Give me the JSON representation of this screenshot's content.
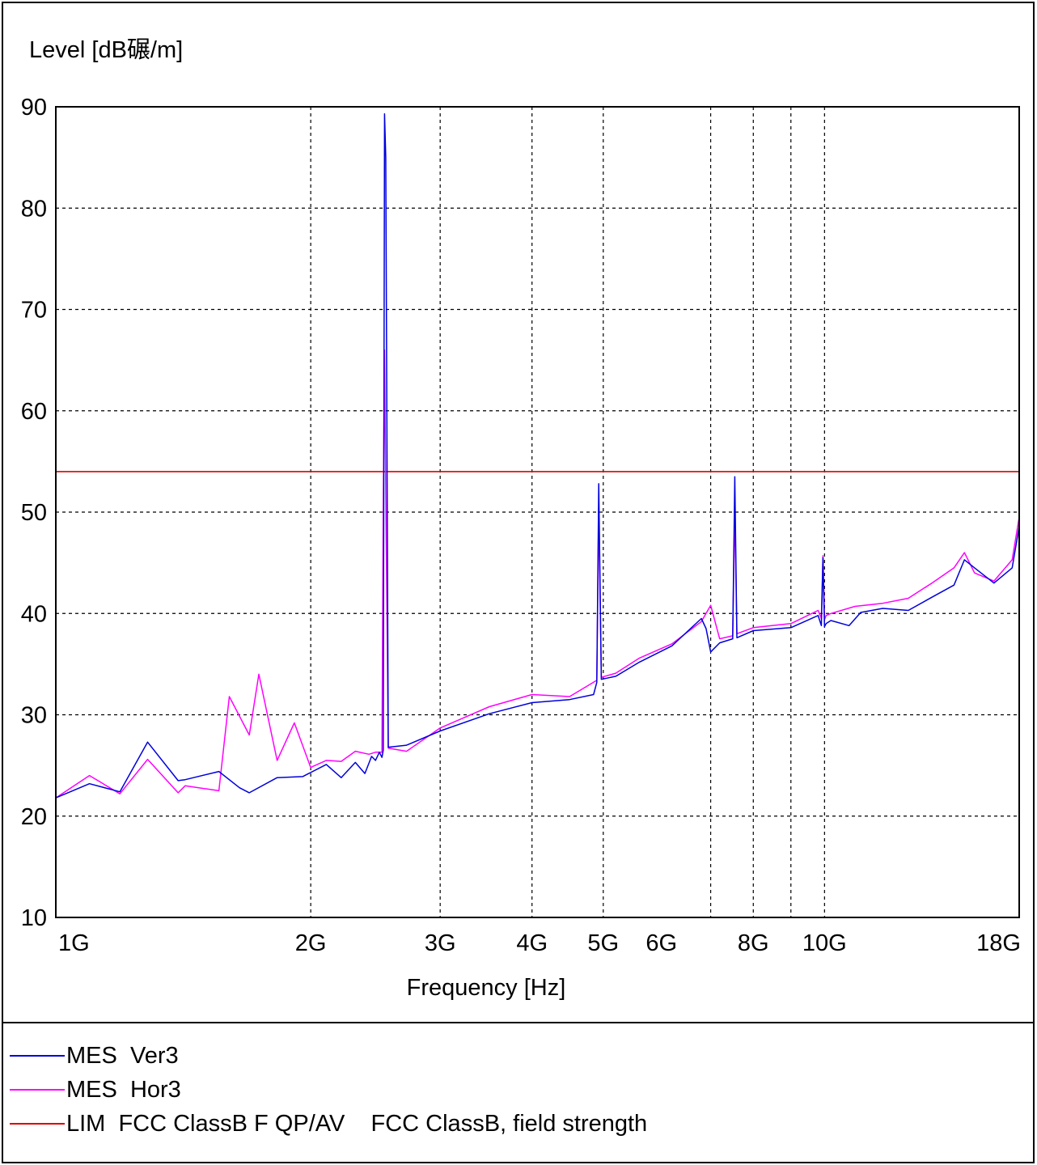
{
  "chart_data": {
    "type": "line",
    "ylabel": "Level [dB碾/m]",
    "xlabel": "Frequency [Hz]",
    "ylim": [
      10,
      90
    ],
    "xlim_hz": [
      900000000,
      18400000000
    ],
    "x_scale": "log",
    "grid": true,
    "y_ticks": [
      10,
      20,
      30,
      40,
      50,
      60,
      70,
      80,
      90
    ],
    "x_ticks": [
      {
        "label": "1G",
        "value": 1000000000
      },
      {
        "label": "2G",
        "value": 2000000000
      },
      {
        "label": "3G",
        "value": 3000000000
      },
      {
        "label": "4G",
        "value": 4000000000
      },
      {
        "label": "5G",
        "value": 5000000000
      },
      {
        "label": "6G",
        "value": 6000000000
      },
      {
        "label": "8G",
        "value": 8000000000
      },
      {
        "label": "10G",
        "value": 10000000000
      },
      {
        "label": "18G",
        "value": 18000000000
      }
    ],
    "x_grid_ghz": [
      2,
      3,
      4,
      5,
      7,
      8,
      9,
      10
    ],
    "series": [
      {
        "name": "MES  Ver3",
        "color": "#0000dd",
        "x_ghz": [
          0.9,
          1.0,
          1.1,
          1.2,
          1.32,
          1.35,
          1.5,
          1.6,
          1.65,
          1.8,
          1.95,
          2.1,
          2.2,
          2.3,
          2.37,
          2.42,
          2.45,
          2.48,
          2.5,
          2.51,
          2.52,
          2.53,
          2.55,
          2.7,
          3.0,
          3.5,
          4.0,
          4.5,
          4.85,
          4.9,
          4.93,
          4.97,
          5.2,
          5.6,
          6.2,
          6.8,
          6.9,
          7.0,
          7.2,
          7.5,
          7.55,
          7.6,
          8.0,
          9.0,
          9.8,
          9.9,
          9.95,
          10.0,
          10.05,
          10.2,
          10.8,
          11.2,
          12.0,
          13.0,
          14.0,
          15.0,
          15.5,
          16.0,
          17.0,
          18.0,
          18.4
        ],
        "y": [
          21.8,
          23.2,
          22.4,
          27.3,
          23.5,
          23.6,
          24.4,
          22.8,
          22.3,
          23.8,
          23.9,
          25.1,
          23.8,
          25.3,
          24.2,
          25.9,
          25.5,
          26.3,
          25.8,
          26.5,
          89.3,
          85.0,
          26.8,
          27.0,
          28.4,
          30.1,
          31.2,
          31.5,
          32.0,
          33.2,
          52.8,
          33.5,
          33.8,
          35.2,
          36.8,
          39.5,
          38.5,
          36.2,
          37.1,
          37.5,
          53.5,
          37.6,
          38.3,
          38.6,
          39.8,
          38.8,
          45.5,
          38.7,
          39.0,
          39.3,
          38.8,
          40.1,
          40.5,
          40.3,
          41.6,
          42.8,
          45.3,
          44.5,
          43.0,
          44.5,
          48.6
        ]
      },
      {
        "name": "MES  Hor3",
        "color": "#ff00ff",
        "x_ghz": [
          0.9,
          1.0,
          1.1,
          1.2,
          1.32,
          1.35,
          1.5,
          1.55,
          1.65,
          1.7,
          1.8,
          1.9,
          2.0,
          2.1,
          2.2,
          2.3,
          2.4,
          2.45,
          2.5,
          2.51,
          2.52,
          2.53,
          2.55,
          2.7,
          3.0,
          3.5,
          4.0,
          4.5,
          4.9,
          4.93,
          4.97,
          5.2,
          5.6,
          6.2,
          6.8,
          7.0,
          7.2,
          7.5,
          7.55,
          7.6,
          8.0,
          9.0,
          9.8,
          9.9,
          9.95,
          10.0,
          10.05,
          10.2,
          11.0,
          12.0,
          13.0,
          14.0,
          15.0,
          15.5,
          16.0,
          17.0,
          18.0,
          18.4
        ],
        "y": [
          21.8,
          24.0,
          22.2,
          25.6,
          22.3,
          23.0,
          22.5,
          31.8,
          28.0,
          34.0,
          25.5,
          29.2,
          24.8,
          25.5,
          25.4,
          26.4,
          26.1,
          26.3,
          26.3,
          50.5,
          66.0,
          52.0,
          26.7,
          26.4,
          28.7,
          30.8,
          32.0,
          31.8,
          33.4,
          50.5,
          33.7,
          34.1,
          35.6,
          37.0,
          39.2,
          40.8,
          37.5,
          37.8,
          50.5,
          38.0,
          38.6,
          39.0,
          40.3,
          39.5,
          45.7,
          39.4,
          39.8,
          40.0,
          40.7,
          41.0,
          41.5,
          43.0,
          44.5,
          46.0,
          44.0,
          43.2,
          45.3,
          49.5
        ]
      },
      {
        "name": "LIM  FCC ClassB F QP/AV    FCC ClassB, field strength",
        "color": "#dd0000",
        "x_ghz": [
          0.9,
          18.4
        ],
        "y": [
          54.0,
          54.0
        ]
      }
    ],
    "legend": [
      {
        "label": "MES  Ver3",
        "color": "#0000dd"
      },
      {
        "label": "MES  Hor3",
        "color": "#ff00ff"
      },
      {
        "label": "LIM  FCC ClassB F QP/AV    FCC ClassB, field strength",
        "color": "#dd0000"
      }
    ],
    "legend_position": "bottom"
  }
}
